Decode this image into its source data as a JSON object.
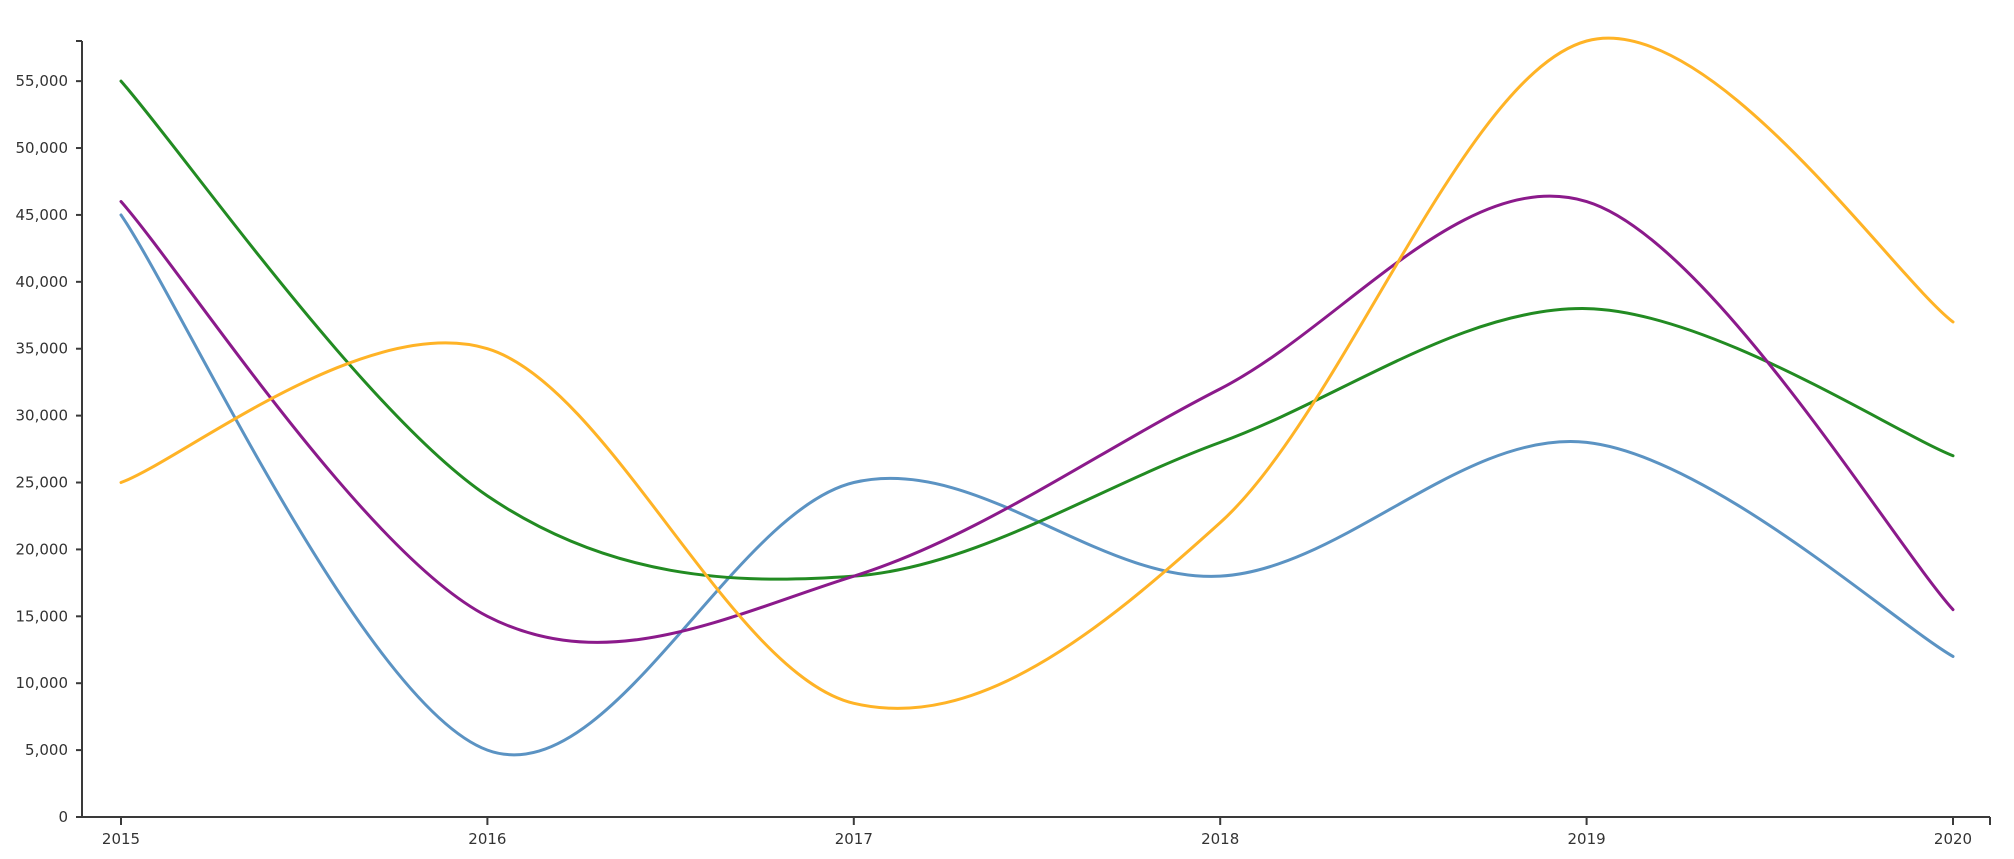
{
  "chart_data": {
    "type": "line",
    "title": "",
    "xlabel": "",
    "ylabel": "",
    "x": [
      "2015",
      "2016",
      "2017",
      "2018",
      "2019",
      "2020"
    ],
    "ylim": [
      0,
      58000
    ],
    "y_ticks": [
      0,
      5000,
      10000,
      15000,
      20000,
      25000,
      30000,
      35000,
      40000,
      45000,
      50000,
      55000
    ],
    "y_tick_labels": [
      "0",
      "5,000",
      "10,000",
      "15,000",
      "20,000",
      "25,000",
      "30,000",
      "35,000",
      "40,000",
      "45,000",
      "50,000",
      "55,000"
    ],
    "grid": false,
    "legend": "none",
    "curve": "smooth",
    "series": [
      {
        "color": "#5b93c3",
        "values": [
          45000,
          5000,
          25000,
          18000,
          28000,
          12000
        ]
      },
      {
        "color": "#228b22",
        "values": [
          55000,
          24000,
          18000,
          28000,
          38000,
          27000
        ]
      },
      {
        "color": "#8b1a8b",
        "values": [
          46000,
          15000,
          18000,
          32000,
          46000,
          15500
        ]
      },
      {
        "color": "#ffb326",
        "values": [
          25000,
          35000,
          8500,
          22000,
          58000,
          37000
        ]
      }
    ]
  }
}
